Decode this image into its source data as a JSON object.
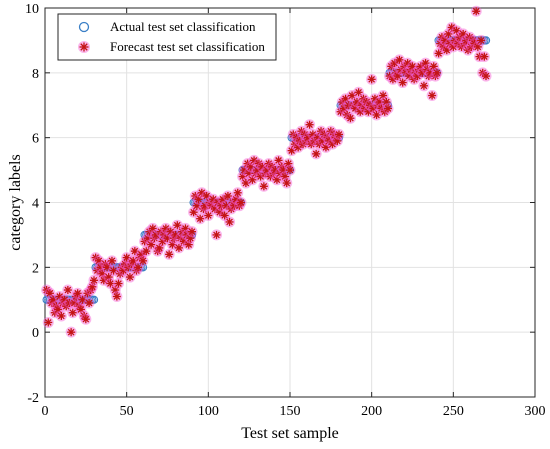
{
  "chart_data": {
    "type": "scatter",
    "title": "",
    "xlabel": "Test set sample",
    "ylabel": "category labels",
    "xlim": [
      0,
      300
    ],
    "ylim": [
      -2,
      10
    ],
    "xticks": [
      0,
      50,
      100,
      150,
      200,
      250,
      300
    ],
    "yticks": [
      -2,
      0,
      2,
      4,
      6,
      8,
      10
    ],
    "grid": true,
    "legend_position": "top-left",
    "colors": {
      "actual": "#3a7fc6",
      "forecast": "#c41414",
      "forecast_glow": "#f45ad2"
    },
    "series": [
      {
        "name": "Actual test set classification",
        "marker": "circle",
        "segments": [
          {
            "x_start": 1,
            "x_end": 30,
            "y": 1
          },
          {
            "x_start": 31,
            "x_end": 60,
            "y": 2
          },
          {
            "x_start": 61,
            "x_end": 90,
            "y": 3
          },
          {
            "x_start": 91,
            "x_end": 120,
            "y": 4
          },
          {
            "x_start": 121,
            "x_end": 150,
            "y": 5
          },
          {
            "x_start": 151,
            "x_end": 180,
            "y": 6
          },
          {
            "x_start": 181,
            "x_end": 210,
            "y": 7
          },
          {
            "x_start": 211,
            "x_end": 240,
            "y": 8
          },
          {
            "x_start": 241,
            "x_end": 270,
            "y": 9
          }
        ]
      },
      {
        "name": "Forecast test set classification",
        "marker": "asterisk",
        "x": [
          1,
          2,
          3,
          4,
          5,
          6,
          7,
          8,
          9,
          10,
          11,
          12,
          13,
          14,
          15,
          16,
          17,
          18,
          19,
          20,
          21,
          22,
          23,
          24,
          25,
          26,
          27,
          28,
          29,
          30,
          31,
          32,
          33,
          34,
          35,
          36,
          37,
          38,
          39,
          40,
          41,
          42,
          43,
          44,
          45,
          46,
          47,
          48,
          49,
          50,
          51,
          52,
          53,
          54,
          55,
          56,
          57,
          58,
          59,
          60,
          61,
          62,
          63,
          64,
          65,
          66,
          67,
          68,
          69,
          70,
          71,
          72,
          73,
          74,
          75,
          76,
          77,
          78,
          79,
          80,
          81,
          82,
          83,
          84,
          85,
          86,
          87,
          88,
          89,
          90,
          91,
          92,
          93,
          94,
          95,
          96,
          97,
          98,
          99,
          100,
          101,
          102,
          103,
          104,
          105,
          106,
          107,
          108,
          109,
          110,
          111,
          112,
          113,
          114,
          115,
          116,
          117,
          118,
          119,
          120,
          121,
          122,
          123,
          124,
          125,
          126,
          127,
          128,
          129,
          130,
          131,
          132,
          133,
          134,
          135,
          136,
          137,
          138,
          139,
          140,
          141,
          142,
          143,
          144,
          145,
          146,
          147,
          148,
          149,
          150,
          151,
          152,
          153,
          154,
          155,
          156,
          157,
          158,
          159,
          160,
          161,
          162,
          163,
          164,
          165,
          166,
          167,
          168,
          169,
          170,
          171,
          172,
          173,
          174,
          175,
          176,
          177,
          178,
          179,
          180,
          181,
          182,
          183,
          184,
          185,
          186,
          187,
          188,
          189,
          190,
          191,
          192,
          193,
          194,
          195,
          196,
          197,
          198,
          199,
          200,
          201,
          202,
          203,
          204,
          205,
          206,
          207,
          208,
          209,
          210,
          211,
          212,
          213,
          214,
          215,
          216,
          217,
          218,
          219,
          220,
          221,
          222,
          223,
          224,
          225,
          226,
          227,
          228,
          229,
          230,
          231,
          232,
          233,
          234,
          235,
          236,
          237,
          238,
          239,
          240,
          241,
          242,
          243,
          244,
          245,
          246,
          247,
          248,
          249,
          250,
          251,
          252,
          253,
          254,
          255,
          256,
          257,
          258,
          259,
          260,
          261,
          262,
          263,
          264,
          265,
          266,
          267,
          268,
          269,
          270
        ],
        "y": [
          1.3,
          0.3,
          1.2,
          0.9,
          1.0,
          0.6,
          0.8,
          0.7,
          1.1,
          0.5,
          0.9,
          1.0,
          0.8,
          1.3,
          0.9,
          0.0,
          0.6,
          0.9,
          1.1,
          1.2,
          0.8,
          0.7,
          1.0,
          0.5,
          0.4,
          1.2,
          0.9,
          1.3,
          1.4,
          1.6,
          2.3,
          1.9,
          2.2,
          2.0,
          1.8,
          1.6,
          2.1,
          2.0,
          1.7,
          1.5,
          2.2,
          1.9,
          1.3,
          1.1,
          1.5,
          1.8,
          2.0,
          1.9,
          2.1,
          2.3,
          2.0,
          1.7,
          2.1,
          2.2,
          2.5,
          1.9,
          2.0,
          2.3,
          2.4,
          2.2,
          2.8,
          2.5,
          2.9,
          3.1,
          2.7,
          3.2,
          2.9,
          3.0,
          2.5,
          2.6,
          3.1,
          2.8,
          3.0,
          3.2,
          2.9,
          2.4,
          3.1,
          2.7,
          2.9,
          3.0,
          3.3,
          2.6,
          2.9,
          3.1,
          2.8,
          3.2,
          3.0,
          2.7,
          2.9,
          3.1,
          3.7,
          4.2,
          3.9,
          4.1,
          3.5,
          4.3,
          3.8,
          3.9,
          4.2,
          3.6,
          4.0,
          3.9,
          4.1,
          3.8,
          3.0,
          4.0,
          3.7,
          3.9,
          4.1,
          3.6,
          3.9,
          4.2,
          3.4,
          3.8,
          4.0,
          3.9,
          4.1,
          4.3,
          3.9,
          4.0,
          4.8,
          5.0,
          4.6,
          5.2,
          4.9,
          5.1,
          4.7,
          5.3,
          4.9,
          5.0,
          5.2,
          4.8,
          5.1,
          4.5,
          4.9,
          5.0,
          5.2,
          4.8,
          5.1,
          4.9,
          5.0,
          4.7,
          5.3,
          4.9,
          5.1,
          5.0,
          4.8,
          4.6,
          5.2,
          5.0,
          5.6,
          6.1,
          5.8,
          6.0,
          5.7,
          5.9,
          6.2,
          5.8,
          6.1,
          5.9,
          6.0,
          6.4,
          5.8,
          6.1,
          5.9,
          5.5,
          6.0,
          5.8,
          6.2,
          5.9,
          6.1,
          5.7,
          6.0,
          5.9,
          6.2,
          5.8,
          6.1,
          6.0,
          5.9,
          6.1,
          6.8,
          7.1,
          6.9,
          7.2,
          6.7,
          7.0,
          6.6,
          7.3,
          7.0,
          6.9,
          7.1,
          7.4,
          6.8,
          7.0,
          7.2,
          6.9,
          7.1,
          6.8,
          7.0,
          7.8,
          6.9,
          7.2,
          6.7,
          7.0,
          7.1,
          6.9,
          7.3,
          6.8,
          7.1,
          6.9,
          7.9,
          8.2,
          7.8,
          8.3,
          8.0,
          7.9,
          8.4,
          8.1,
          7.7,
          8.2,
          8.0,
          8.3,
          7.9,
          8.1,
          8.2,
          7.8,
          8.0,
          7.9,
          8.1,
          8.2,
          8.0,
          7.6,
          8.3,
          8.1,
          7.9,
          8.0,
          7.3,
          8.2,
          7.9,
          8.0,
          8.6,
          8.9,
          9.1,
          8.8,
          9.0,
          8.7,
          9.2,
          8.9,
          9.4,
          8.8,
          9.0,
          9.3,
          8.9,
          9.1,
          8.8,
          9.2,
          8.9,
          9.0,
          8.7,
          9.1,
          8.8,
          9.0,
          8.9,
          9.9,
          8.8,
          8.5,
          9.0,
          8.0,
          8.5,
          7.9
        ]
      }
    ]
  }
}
